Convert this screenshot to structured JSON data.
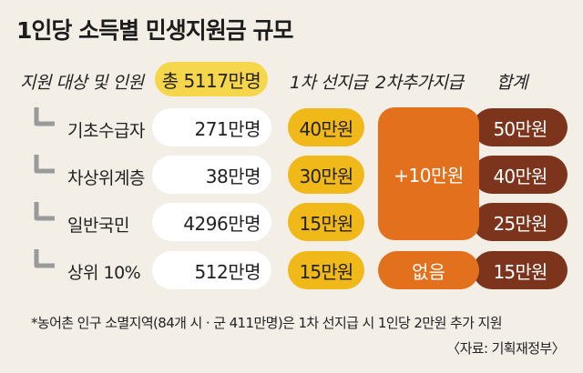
{
  "title": "1인당 소득별 민생지원금 규모",
  "headers": {
    "target": "지원 대상 및 인원",
    "first": "1차 선지급",
    "second": "2차추가지급",
    "sum": "합계"
  },
  "total": "총 5117만명",
  "rows": [
    {
      "label": "기초수급자",
      "population": "271만명",
      "first": "40만원",
      "total": "50만원"
    },
    {
      "label": "차상위계층",
      "population": "38만명",
      "first": "30만원",
      "total": "40만원"
    },
    {
      "label": "일반국민",
      "population": "4296만명",
      "first": "15만원",
      "total": "25만원"
    },
    {
      "label": "상위 10%",
      "population": "512만명",
      "first": "15만원",
      "total": "15만원"
    }
  ],
  "second_shared": "+10만원",
  "second_top": "없음",
  "footnote": "*농어촌 인구 소멸지역(84개 시 · 군 411만명)은 1차 선지급 시 1인당 2만원 추가 지원",
  "source": "〈자료: 기획재정부〉",
  "colors": {
    "background": "#f3eee6",
    "yellow": "#f6d64a",
    "amber": "#f0b818",
    "orange": "#e2701c",
    "brown": "#7c351c"
  }
}
